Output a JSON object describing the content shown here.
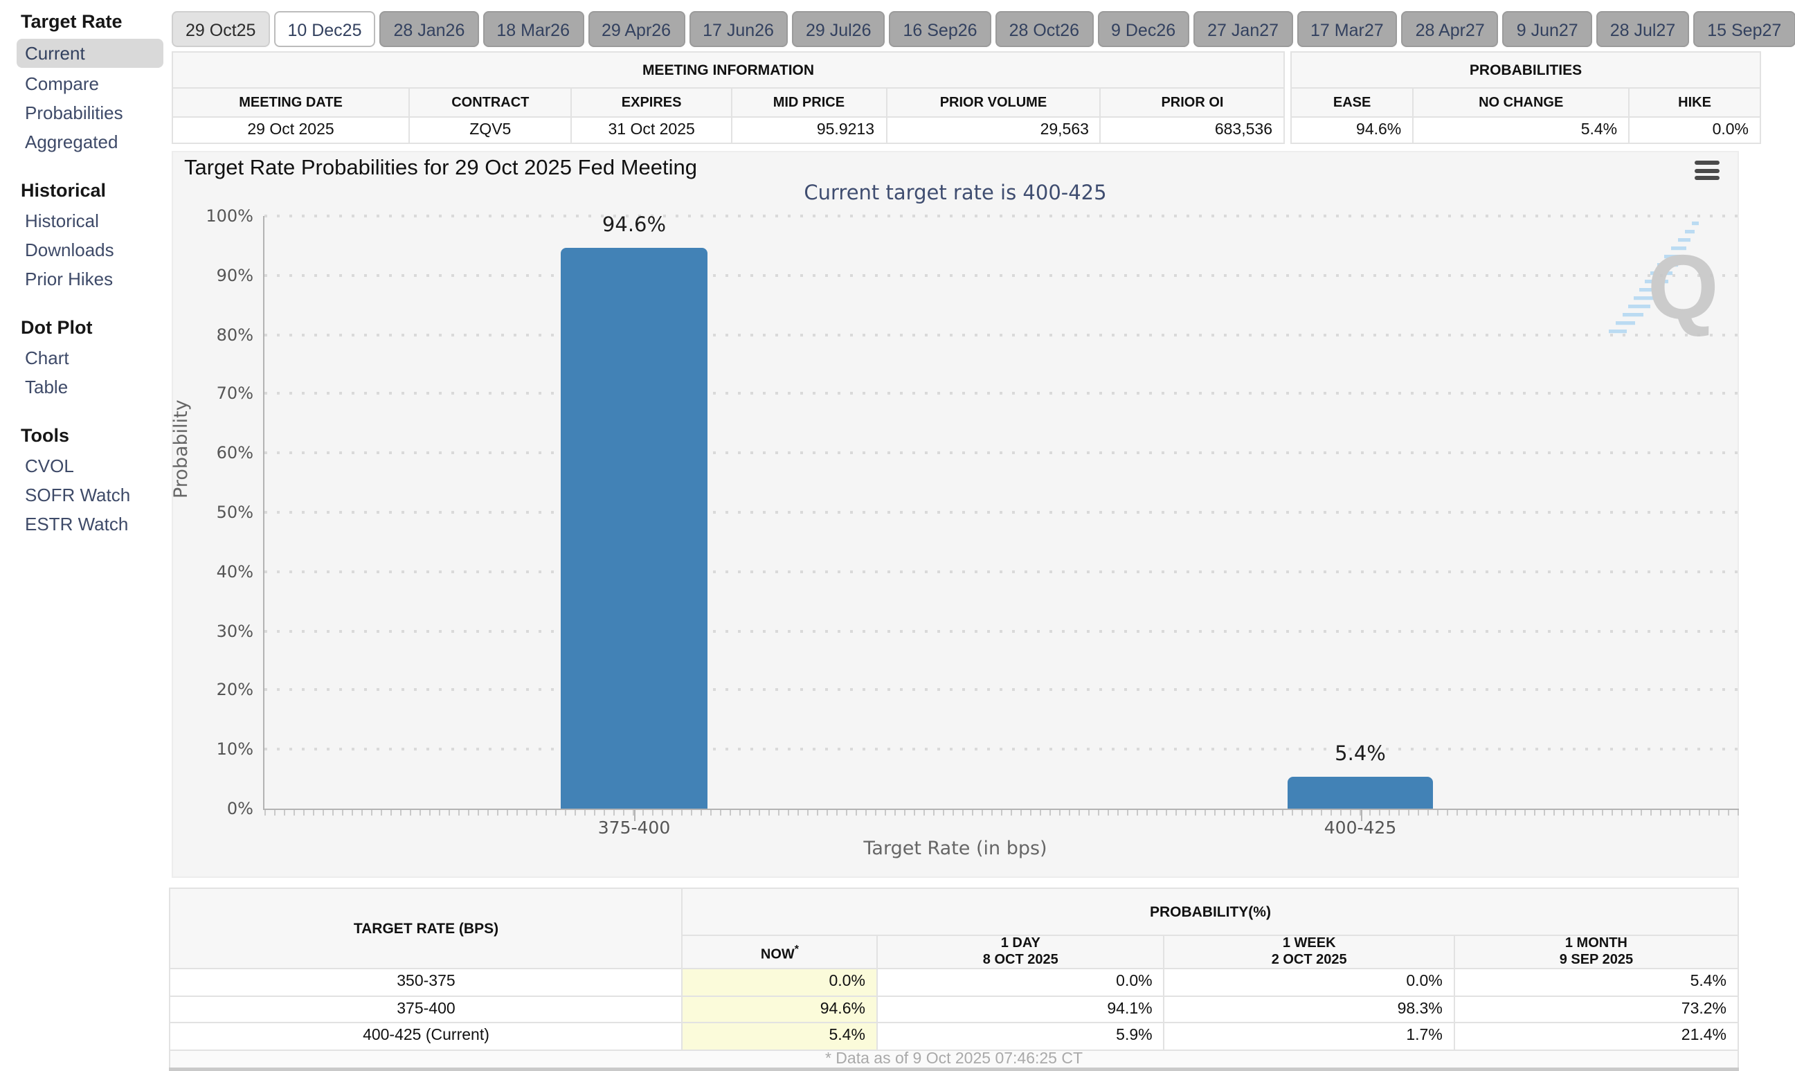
{
  "sidebar": {
    "sections": [
      {
        "title": "Target Rate",
        "items": [
          {
            "label": "Current",
            "active": true
          },
          {
            "label": "Compare"
          },
          {
            "label": "Probabilities"
          },
          {
            "label": "Aggregated"
          }
        ]
      },
      {
        "title": "Historical",
        "items": [
          {
            "label": "Historical"
          },
          {
            "label": "Downloads"
          },
          {
            "label": "Prior Hikes"
          }
        ]
      },
      {
        "title": "Dot Plot",
        "items": [
          {
            "label": "Chart"
          },
          {
            "label": "Table"
          }
        ]
      },
      {
        "title": "Tools",
        "items": [
          {
            "label": "CVOL"
          },
          {
            "label": "SOFR Watch"
          },
          {
            "label": "ESTR Watch"
          }
        ]
      }
    ]
  },
  "tabs": [
    {
      "label": "29 Oct25",
      "state": "past"
    },
    {
      "label": "10 Dec25",
      "state": "active"
    },
    {
      "label": "28 Jan26",
      "state": "default"
    },
    {
      "label": "18 Mar26",
      "state": "default"
    },
    {
      "label": "29 Apr26",
      "state": "default"
    },
    {
      "label": "17 Jun26",
      "state": "default"
    },
    {
      "label": "29 Jul26",
      "state": "default"
    },
    {
      "label": "16 Sep26",
      "state": "default"
    },
    {
      "label": "28 Oct26",
      "state": "default"
    },
    {
      "label": "9 Dec26",
      "state": "default"
    },
    {
      "label": "27 Jan27",
      "state": "default"
    },
    {
      "label": "17 Mar27",
      "state": "default"
    },
    {
      "label": "28 Apr27",
      "state": "default"
    },
    {
      "label": "9 Jun27",
      "state": "default"
    },
    {
      "label": "28 Jul27",
      "state": "default"
    },
    {
      "label": "15 Sep27",
      "state": "default"
    }
  ],
  "meeting_info": {
    "title": "MEETING INFORMATION",
    "headers": [
      "MEETING DATE",
      "CONTRACT",
      "EXPIRES",
      "MID PRICE",
      "PRIOR VOLUME",
      "PRIOR OI"
    ],
    "values": [
      "29 Oct 2025",
      "ZQV5",
      "31 Oct 2025",
      "95.9213",
      "29,563",
      "683,536"
    ]
  },
  "probabilities_panel": {
    "title": "PROBABILITIES",
    "headers": [
      "EASE",
      "NO CHANGE",
      "HIKE"
    ],
    "values": [
      "94.6%",
      "5.4%",
      "0.0%"
    ]
  },
  "chart_data": {
    "type": "bar",
    "title": "Target Rate Probabilities for 29 Oct 2025 Fed Meeting",
    "subtitle": "Current target rate is 400-425",
    "categories": [
      "375-400",
      "400-425"
    ],
    "values": [
      94.6,
      5.4
    ],
    "value_labels": [
      "94.6%",
      "5.4%"
    ],
    "xlabel": "Target Rate (in bps)",
    "ylabel": "Probability",
    "ylim": [
      0,
      100
    ],
    "ytick_step": 10,
    "ytick_suffix": "%",
    "grid": "dotted-horizontal",
    "legend": "none",
    "bar_color": "#4282b6"
  },
  "bottom_table": {
    "col1_header": "TARGET RATE (BPS)",
    "group_header": "PROBABILITY(%)",
    "columns": [
      {
        "line1": "NOW",
        "sup": "*",
        "line2": ""
      },
      {
        "line1": "1 DAY",
        "line2": "8 OCT 2025"
      },
      {
        "line1": "1 WEEK",
        "line2": "2 OCT 2025"
      },
      {
        "line1": "1 MONTH",
        "line2": "9 SEP 2025"
      }
    ],
    "rows": [
      {
        "rate": "350-375",
        "now": "0.0%",
        "day": "0.0%",
        "week": "0.0%",
        "month": "5.4%"
      },
      {
        "rate": "375-400",
        "now": "94.6%",
        "day": "94.1%",
        "week": "98.3%",
        "month": "73.2%"
      },
      {
        "rate": "400-425 (Current)",
        "now": "5.4%",
        "day": "5.9%",
        "week": "1.7%",
        "month": "21.4%"
      }
    ],
    "footnote": "* Data as of 9 Oct 2025 07:46:25 CT"
  },
  "icons": {
    "menu": "hamburger-menu-icon",
    "watermark": "quikstrike-q-watermark"
  },
  "colors": {
    "bar_blue": "#4282b6",
    "now_highlight": "#fbfbda",
    "panel_bg": "#f5f5f5",
    "tab_gray": "#a9a9a9",
    "link_navy": "#3e4a68"
  }
}
